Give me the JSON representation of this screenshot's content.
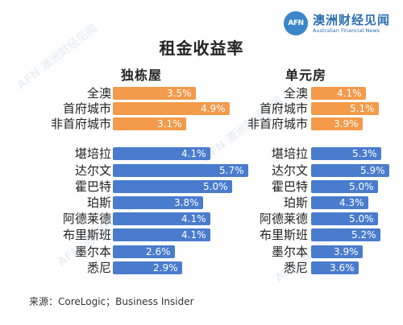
{
  "header": {
    "logo_cn": "澳洲财经见闻",
    "logo_en": "Australian Financial News",
    "logo_mark": "AFN"
  },
  "source": "来源：CoreLogic；Business Insider",
  "colors": {
    "summary_bar": "#f39a4b",
    "city_bar": "#4a7ccd"
  },
  "chart_data": {
    "type": "bar",
    "title": "租金收益率",
    "categories": [
      "全澳",
      "首府城市",
      "非首府城市",
      "堪培拉",
      "达尔文",
      "霍巴特",
      "珀斯",
      "阿德莱德",
      "布里斯班",
      "墨尔本",
      "悉尼"
    ],
    "series": [
      {
        "name": "独栋屋",
        "values": [
          3.5,
          4.9,
          3.1,
          4.1,
          5.7,
          5.0,
          3.8,
          4.1,
          4.1,
          2.6,
          2.9
        ],
        "labels": [
          "3.5%",
          "4.9%",
          "3.1%",
          "4.1%",
          "5.7%",
          "5.0%",
          "3.8%",
          "4.1%",
          "4.1%",
          "2.6%",
          "2.9%"
        ]
      },
      {
        "name": "单元房",
        "values": [
          4.1,
          5.1,
          3.9,
          5.3,
          5.9,
          5.0,
          4.3,
          5.0,
          5.2,
          3.9,
          3.6
        ],
        "labels": [
          "4.1%",
          "5.1%",
          "3.9%",
          "5.3%",
          "5.9%",
          "5.0%",
          "4.3%",
          "5.0%",
          "5.2%",
          "3.9%",
          "3.6%"
        ]
      }
    ],
    "summary_rows": 3,
    "unit": "%"
  }
}
